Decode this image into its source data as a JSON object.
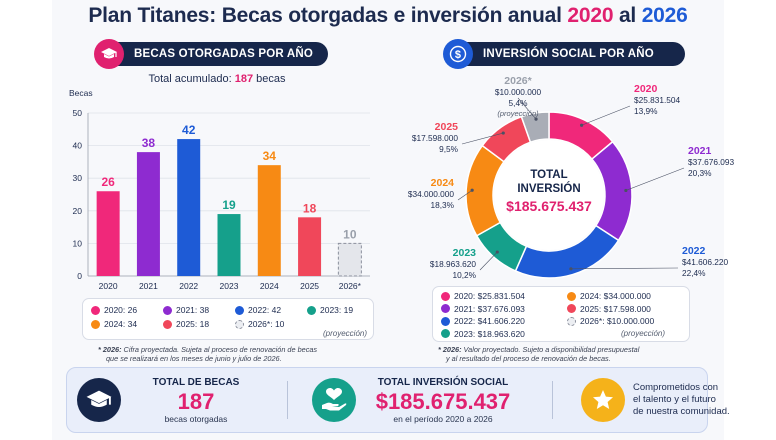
{
  "header": {
    "title_main": "Plan Titanes: Becas otorgadas e inversión anual",
    "title_y1": "2020",
    "title_al": "al",
    "title_y2": "2026"
  },
  "left_section": {
    "pill_label": "BECAS OTORGADAS POR AÑO",
    "total_prefix": "Total acumulado:",
    "total_value": "187",
    "total_suffix": "becas",
    "note_bold": "* 2026:",
    "note_rest": " Cifra proyectada. Sujeta al proceso de renovación de becas",
    "note_line2": "que se realizará en los meses de junio y julio de 2026.",
    "legend": [
      {
        "label": "2020: 26",
        "color": "#f0287a"
      },
      {
        "label": "2021: 38",
        "color": "#8e2bd0"
      },
      {
        "label": "2022: 42",
        "color": "#1e5bd6"
      },
      {
        "label": "2023: 19",
        "color": "#15a08b"
      },
      {
        "label": "2024: 34",
        "color": "#f78a14"
      },
      {
        "label": "2025: 18",
        "color": "#f0475a"
      },
      {
        "label": "2026*: 10",
        "color": "#d0d3da"
      }
    ],
    "legend_proj": "(proyección)"
  },
  "right_section": {
    "pill_label": "INVERSIÓN SOCIAL POR AÑO",
    "center_line1": "TOTAL",
    "center_line2": "INVERSIÓN",
    "center_value": "$185.675.437",
    "note_bold": "* 2026:",
    "note_rest": " Valor proyectado. Sujeto a disponibilidad presupuestal",
    "note_line2": "y al resultado del proceso de renovación de becas.",
    "legend": [
      {
        "label": "2020:  $25.831.504",
        "color": "#f0287a"
      },
      {
        "label": "2021:  $37.676.093",
        "color": "#8e2bd0"
      },
      {
        "label": "2022:  $41.606.220",
        "color": "#1e5bd6"
      },
      {
        "label": "2023:  $18.963.620",
        "color": "#15a08b"
      },
      {
        "label": "2024:  $34.000.000",
        "color": "#f78a14"
      },
      {
        "label": "2025:  $17.598.000",
        "color": "#f0475a"
      },
      {
        "label": "2026*: $10.000.000",
        "color": "#a9adb6"
      }
    ],
    "legend_proj": "(proyección)"
  },
  "chart_data": [
    {
      "type": "bar",
      "title": "BECAS OTORGADAS POR AÑO",
      "ylabel": "Becas",
      "categories": [
        "2020",
        "2021",
        "2022",
        "2023",
        "2024",
        "2025",
        "2026*"
      ],
      "values": [
        26,
        38,
        42,
        19,
        34,
        18,
        10
      ],
      "value_labels": [
        "26",
        "38",
        "42",
        "19",
        "34",
        "18",
        "10"
      ],
      "colors": [
        "#f0287a",
        "#8e2bd0",
        "#1e5bd6",
        "#15a08b",
        "#f78a14",
        "#f0475a",
        "#e4e6eb"
      ],
      "ylim": [
        0,
        50
      ],
      "yticks": [
        "0",
        "10",
        "20",
        "30",
        "40",
        "50"
      ],
      "grid": true,
      "projected_index": 6
    },
    {
      "type": "pie",
      "title": "INVERSIÓN SOCIAL POR AÑO",
      "donut": true,
      "categories": [
        "2020",
        "2021",
        "2022",
        "2023",
        "2024",
        "2025",
        "2026*"
      ],
      "values": [
        25831504,
        37676093,
        41606220,
        18963620,
        34000000,
        17598000,
        10000000
      ],
      "value_labels": [
        "$25.831.504",
        "$37.676.093",
        "$41.606.220",
        "$18.963.620",
        "$34.000.000",
        "$17.598.000",
        "$10.000.000"
      ],
      "percent_labels": [
        "13,9%",
        "20,3%",
        "22,4%",
        "10,2%",
        "18,3%",
        "9,5%",
        "5,4%"
      ],
      "colors": [
        "#f0287a",
        "#8e2bd0",
        "#1e5bd6",
        "#15a08b",
        "#f78a14",
        "#f0475a",
        "#a9adb6"
      ],
      "projection_note": "(proyección)"
    }
  ],
  "summary": {
    "becas_label": "TOTAL DE BECAS",
    "becas_value": "187",
    "becas_sub": "becas otorgadas",
    "inv_label": "TOTAL INVERSIÓN SOCIAL",
    "inv_value": "$185.675.437",
    "inv_sub": "en el período 2020 a 2026",
    "msg_line1": "Comprometidos con",
    "msg_line2": "el talento y el futuro",
    "msg_line3": "de nuestra comunidad."
  },
  "icons": {
    "becas_pill": "graduation-cap-icon",
    "inversion_pill": "dollar-coin-icon",
    "becas_summary": "graduation-cap-icon",
    "inversion_summary": "hand-heart-icon",
    "message": "star-icon"
  }
}
